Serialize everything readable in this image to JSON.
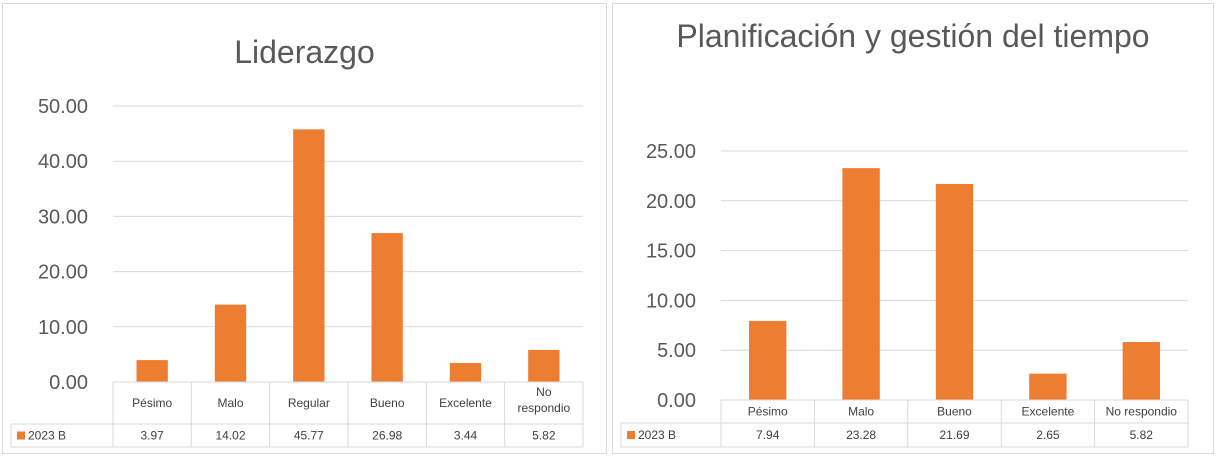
{
  "chart_data": [
    {
      "type": "bar",
      "title": "Liderazgo",
      "categories": [
        "Pésimo",
        "Malo",
        "Regular",
        "Bueno",
        "Excelente",
        "No respondio"
      ],
      "series": [
        {
          "name": "2023 B",
          "values": [
            3.97,
            14.02,
            45.77,
            26.98,
            3.44,
            5.82
          ],
          "color": "#ed7d31"
        }
      ],
      "ylim": [
        0,
        50
      ],
      "yticks": [
        "0.00",
        "10.00",
        "20.00",
        "30.00",
        "40.00",
        "50.00"
      ],
      "ytick_values": [
        0,
        10,
        20,
        30,
        40,
        50
      ],
      "value_labels": [
        "3.97",
        "14.02",
        "45.77",
        "26.98",
        "3.44",
        "5.82"
      ],
      "grid": true,
      "legend": "data-table"
    },
    {
      "type": "bar",
      "title": "Planificación y gestión del tiempo",
      "categories": [
        "Pésimo",
        "Malo",
        "Bueno",
        "Excelente",
        "No respondio"
      ],
      "series": [
        {
          "name": "2023 B",
          "values": [
            7.94,
            23.28,
            21.69,
            2.65,
            5.82
          ],
          "color": "#ed7d31"
        }
      ],
      "ylim": [
        0,
        25
      ],
      "yticks": [
        "0.00",
        "5.00",
        "10.00",
        "15.00",
        "20.00",
        "25.00"
      ],
      "ytick_values": [
        0,
        5,
        10,
        15,
        20,
        25
      ],
      "value_labels": [
        "7.94",
        "23.28",
        "21.69",
        "2.65",
        "5.82"
      ],
      "grid": true,
      "legend": "data-table"
    }
  ]
}
